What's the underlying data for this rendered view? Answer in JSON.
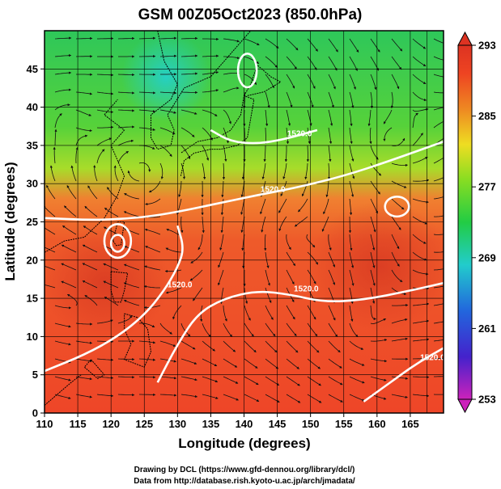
{
  "chart_data": {
    "type": "heatmap",
    "title": "GSM 00Z05Oct2023 (850.0hPa)",
    "xlabel": "Longitude (degrees)",
    "ylabel": "Latitude  (degrees)",
    "xlim": [
      110,
      170
    ],
    "ylim": [
      0,
      50
    ],
    "x_ticks": [
      110,
      115,
      120,
      125,
      130,
      135,
      140,
      145,
      150,
      155,
      160,
      165
    ],
    "y_ticks": [
      0,
      5,
      10,
      15,
      20,
      25,
      30,
      35,
      40,
      45
    ],
    "grid": true,
    "colorbar": {
      "ticks": [
        253,
        261,
        269,
        277,
        285,
        293
      ],
      "range": [
        253,
        293
      ],
      "placement": "right",
      "colors": [
        "#cc22bb",
        "#4422cc",
        "#2266dd",
        "#22cccc",
        "#22cc44",
        "#88dd22",
        "#eedd22",
        "#ee8822",
        "#ee4422",
        "#dd3322"
      ]
    },
    "contour_labels": [
      "1520.0",
      "1520.0",
      "1520.0",
      "1520.0",
      "1520.0"
    ],
    "series": [
      {
        "contour": "1520.0",
        "points": [
          [
            110,
            25.5
          ],
          [
            118,
            25.2
          ],
          [
            125,
            25.6
          ],
          [
            130,
            26.3
          ],
          [
            136,
            27.4
          ],
          [
            142,
            28.5
          ],
          [
            148,
            29.5
          ],
          [
            155,
            31.0
          ],
          [
            162,
            33.0
          ],
          [
            170,
            35.5
          ]
        ]
      },
      {
        "contour": "1520.0",
        "points": [
          [
            110,
            5.5
          ],
          [
            116,
            7.6
          ],
          [
            121,
            10.0
          ],
          [
            125,
            12.8
          ],
          [
            128,
            16.0
          ],
          [
            130,
            19.0
          ],
          [
            131,
            21.5
          ],
          [
            130,
            24.5
          ]
        ]
      },
      {
        "contour": "1520.0",
        "points": [
          [
            127,
            4.0
          ],
          [
            130,
            9.0
          ],
          [
            133,
            13.0
          ],
          [
            137,
            15.0
          ],
          [
            142,
            16.0
          ],
          [
            147,
            15.5
          ],
          [
            152,
            14.5
          ],
          [
            158,
            14.8
          ],
          [
            165,
            16.0
          ],
          [
            170,
            17.0
          ]
        ]
      },
      {
        "contour": "1520.0",
        "points": [
          [
            158,
            1.5
          ],
          [
            162,
            4.0
          ],
          [
            166,
            6.5
          ],
          [
            170,
            8.5
          ]
        ]
      },
      {
        "contour": "1520.0",
        "points": [
          [
            135,
            37.0
          ],
          [
            138,
            35.5
          ],
          [
            142,
            35.2
          ],
          [
            146,
            35.8
          ],
          [
            149,
            36.5
          ],
          [
            151,
            37.0
          ]
        ]
      }
    ],
    "closed_contours": [
      {
        "center": [
          121,
          22.5
        ],
        "radius": [
          2.0,
          2.2
        ]
      },
      {
        "center": [
          121,
          22.2
        ],
        "radius": [
          1.0,
          1.1
        ]
      },
      {
        "center": [
          163,
          27.0
        ],
        "radius": [
          1.8,
          1.3
        ]
      },
      {
        "center": [
          140.5,
          44.8
        ],
        "radius": [
          1.4,
          2.2
        ]
      }
    ],
    "credits": [
      "Drawing by DCL (https://www.gfd-dennou.org/library/dcl/)",
      "Data from http://database.rish.kyoto-u.ac.jp/arch/jmadata/"
    ]
  }
}
